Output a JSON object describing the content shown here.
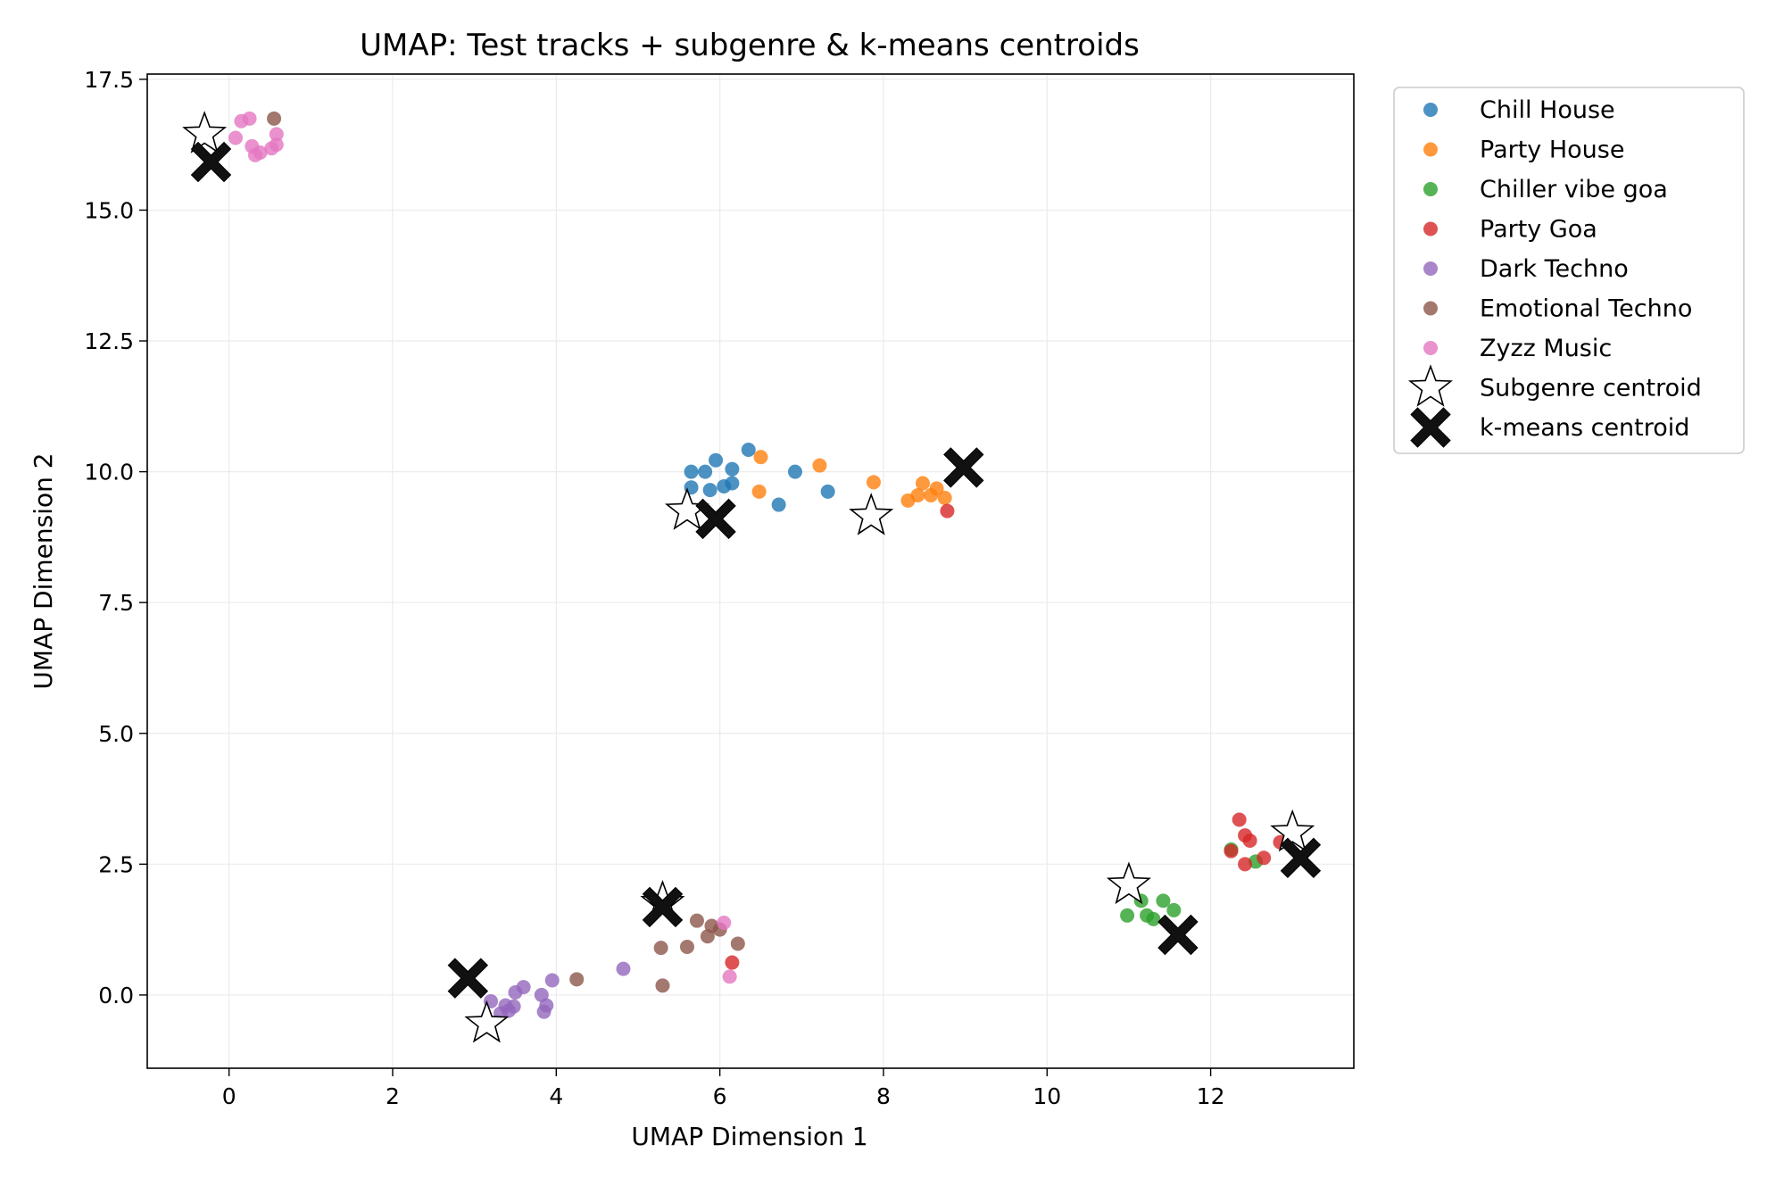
{
  "chart_data": {
    "type": "scatter",
    "title": "UMAP: Test tracks + subgenre & k-means centroids",
    "xlabel": "UMAP Dimension 1",
    "ylabel": "UMAP Dimension 2",
    "xlim": [
      -1.0,
      13.75
    ],
    "ylim": [
      -1.4,
      17.6
    ],
    "xticks": [
      0,
      2,
      4,
      6,
      8,
      10,
      12
    ],
    "xtick_labels": [
      "0",
      "2",
      "4",
      "6",
      "8",
      "10",
      "12"
    ],
    "yticks": [
      0.0,
      2.5,
      5.0,
      7.5,
      10.0,
      12.5,
      15.0,
      17.5
    ],
    "ytick_labels": [
      "0.0",
      "2.5",
      "5.0",
      "7.5",
      "10.0",
      "12.5",
      "15.0",
      "17.5"
    ],
    "grid": true,
    "legend_position": "outside-top-right",
    "series": [
      {
        "name": "Chill House",
        "color": "#1f77b4",
        "points": [
          [
            5.65,
            10.0
          ],
          [
            5.82,
            10.0
          ],
          [
            5.95,
            10.22
          ],
          [
            6.15,
            10.05
          ],
          [
            5.65,
            9.7
          ],
          [
            5.88,
            9.65
          ],
          [
            6.05,
            9.72
          ],
          [
            6.15,
            9.78
          ],
          [
            6.35,
            10.42
          ],
          [
            6.72,
            9.37
          ],
          [
            6.92,
            10.0
          ],
          [
            7.32,
            9.62
          ]
        ]
      },
      {
        "name": "Party House",
        "color": "#ff7f0e",
        "points": [
          [
            6.5,
            10.28
          ],
          [
            6.48,
            9.62
          ],
          [
            7.22,
            10.12
          ],
          [
            7.88,
            9.8
          ],
          [
            8.3,
            9.45
          ],
          [
            8.42,
            9.55
          ],
          [
            8.48,
            9.78
          ],
          [
            8.58,
            9.55
          ],
          [
            8.65,
            9.68
          ],
          [
            8.75,
            9.5
          ]
        ]
      },
      {
        "name": "Chiller vibe goa",
        "color": "#2ca02c",
        "points": [
          [
            10.98,
            1.52
          ],
          [
            11.15,
            1.8
          ],
          [
            11.22,
            1.52
          ],
          [
            11.3,
            1.45
          ],
          [
            11.42,
            1.8
          ],
          [
            11.55,
            1.62
          ],
          [
            12.25,
            2.78
          ],
          [
            12.55,
            2.55
          ]
        ]
      },
      {
        "name": "Party Goa",
        "color": "#d62728",
        "points": [
          [
            12.35,
            3.35
          ],
          [
            12.42,
            3.05
          ],
          [
            12.48,
            2.95
          ],
          [
            12.25,
            2.75
          ],
          [
            12.42,
            2.5
          ],
          [
            12.65,
            2.62
          ],
          [
            12.85,
            2.92
          ],
          [
            8.78,
            9.25
          ],
          [
            6.15,
            0.62
          ]
        ]
      },
      {
        "name": "Dark Techno",
        "color": "#9467bd",
        "points": [
          [
            3.2,
            -0.12
          ],
          [
            3.32,
            -0.35
          ],
          [
            3.38,
            -0.2
          ],
          [
            3.42,
            -0.3
          ],
          [
            3.48,
            -0.22
          ],
          [
            3.5,
            0.05
          ],
          [
            3.6,
            0.15
          ],
          [
            3.82,
            0.0
          ],
          [
            3.88,
            -0.2
          ],
          [
            3.85,
            -0.32
          ],
          [
            3.95,
            0.28
          ],
          [
            4.82,
            0.5
          ]
        ]
      },
      {
        "name": "Emotional Techno",
        "color": "#8c564b",
        "points": [
          [
            4.25,
            0.3
          ],
          [
            5.28,
            0.9
          ],
          [
            5.3,
            0.18
          ],
          [
            5.6,
            0.92
          ],
          [
            5.72,
            1.42
          ],
          [
            5.85,
            1.12
          ],
          [
            5.9,
            1.32
          ],
          [
            6.0,
            1.25
          ],
          [
            6.22,
            0.98
          ],
          [
            0.55,
            16.75
          ]
        ]
      },
      {
        "name": "Zyzz Music",
        "color": "#e377c2",
        "points": [
          [
            0.15,
            16.7
          ],
          [
            0.25,
            16.75
          ],
          [
            0.08,
            16.38
          ],
          [
            0.28,
            16.22
          ],
          [
            0.32,
            16.05
          ],
          [
            0.38,
            16.1
          ],
          [
            0.52,
            16.18
          ],
          [
            0.58,
            16.25
          ],
          [
            0.58,
            16.45
          ],
          [
            6.05,
            1.38
          ],
          [
            6.12,
            0.35
          ]
        ]
      }
    ],
    "subgenre_centroids": {
      "name": "Subgenre centroid",
      "points": [
        [
          -0.3,
          16.45
        ],
        [
          5.6,
          9.25
        ],
        [
          7.85,
          9.15
        ],
        [
          11.0,
          2.1
        ],
        [
          13.0,
          3.1
        ],
        [
          3.15,
          -0.55
        ],
        [
          5.3,
          1.75
        ]
      ]
    },
    "kmeans_centroids": {
      "name": "k-means centroid",
      "points": [
        [
          -0.22,
          15.92
        ],
        [
          5.95,
          9.1
        ],
        [
          8.98,
          10.08
        ],
        [
          11.6,
          1.15
        ],
        [
          13.1,
          2.62
        ],
        [
          2.92,
          0.32
        ],
        [
          5.3,
          1.68
        ]
      ]
    }
  }
}
